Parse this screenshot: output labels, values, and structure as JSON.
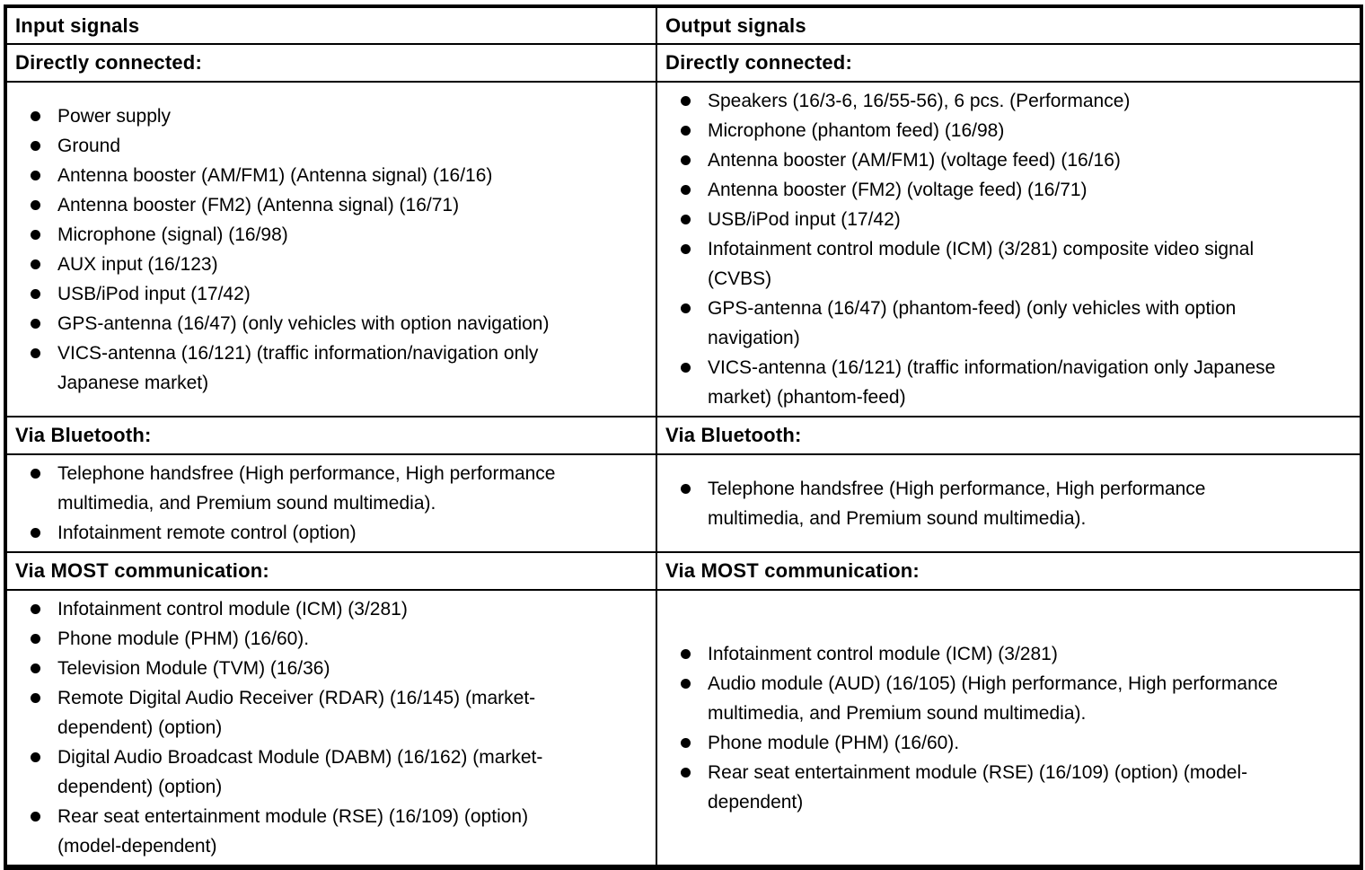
{
  "colors": {
    "border": "#000000",
    "background": "#ffffff",
    "text": "#000000"
  },
  "table": {
    "columns": [
      {
        "header": "Input signals",
        "sections": [
          {
            "title": "Directly connected:",
            "items": [
              "Power supply",
              "Ground",
              "Antenna booster (AM/FM1) (Antenna signal) (16/16)",
              "Antenna booster (FM2) (Antenna signal) (16/71)",
              "Microphone (signal) (16/98)",
              "AUX input (16/123)",
              "USB/iPod input (17/42)",
              "GPS-antenna (16/47) (only vehicles with option navigation)",
              "VICS-antenna (16/121) (traffic information/navigation only Japanese market)"
            ]
          },
          {
            "title": "Via Bluetooth:",
            "items": [
              "Telephone handsfree (High performance, High performance multimedia, and Premium sound multimedia).",
              "Infotainment remote control (option)"
            ]
          },
          {
            "title": "Via MOST communication:",
            "items": [
              "Infotainment control module (ICM) (3/281)",
              "Phone module (PHM) (16/60).",
              "Television Module (TVM) (16/36)",
              "Remote Digital Audio Receiver (RDAR) (16/145) (market-dependent) (option)",
              "Digital Audio Broadcast Module (DABM) (16/162) (market-dependent) (option)",
              "Rear seat entertainment module (RSE) (16/109) (option) (model-dependent)"
            ]
          }
        ]
      },
      {
        "header": "Output signals",
        "sections": [
          {
            "title": "Directly connected:",
            "items": [
              "Speakers (16/3-6, 16/55-56), 6 pcs. (Performance)",
              "Microphone (phantom feed) (16/98)",
              "Antenna booster (AM/FM1) (voltage feed) (16/16)",
              "Antenna booster (FM2) (voltage feed) (16/71)",
              "USB/iPod input (17/42)",
              "Infotainment control module (ICM) (3/281) composite video signal (CVBS)",
              "GPS-antenna (16/47) (phantom-feed) (only vehicles with option navigation)",
              "VICS-antenna (16/121) (traffic information/navigation only Japanese market) (phantom-feed)"
            ]
          },
          {
            "title": "Via Bluetooth:",
            "items": [
              "Telephone handsfree (High performance, High performance multimedia, and Premium sound multimedia)."
            ]
          },
          {
            "title": "Via MOST communication:",
            "items": [
              "Infotainment control module (ICM) (3/281)",
              "Audio module (AUD) (16/105) (High performance, High performance multimedia, and Premium sound multimedia).",
              "Phone module (PHM) (16/60).",
              "Rear seat entertainment module (RSE) (16/109) (option) (model-dependent)"
            ]
          }
        ]
      }
    ]
  }
}
